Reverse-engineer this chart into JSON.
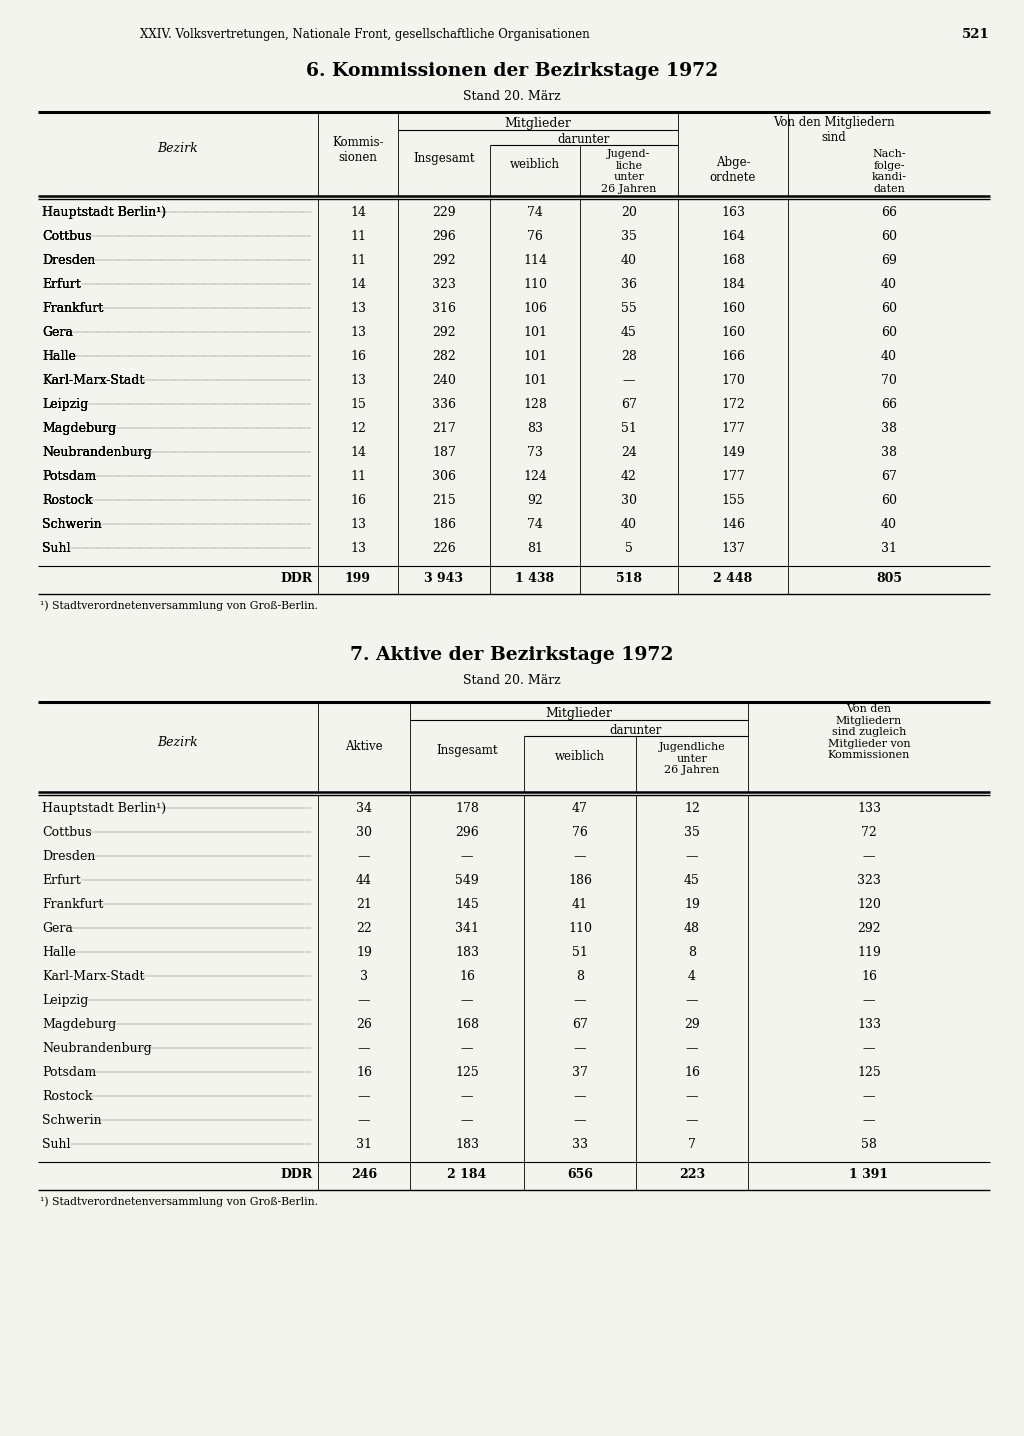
{
  "page_header": "XXIV. Volksvertretungen, Nationale Front, gesellschaftliche Organisationen",
  "page_number": "521",
  "table1_title": "6. Kommissionen der Bezirkstage 1972",
  "table1_subtitle": "Stand 20. März",
  "table2_title": "7. Aktive der Bezirkstage 1972",
  "table2_subtitle": "Stand 20. März",
  "footnote": "¹) Stadtverordnetenversammlung von Groß-Berlin.",
  "table1_data": [
    [
      "Hauptstadt Berlin¹)",
      "14",
      "229",
      "74",
      "20",
      "163",
      "66"
    ],
    [
      "Cottbus",
      "11",
      "296",
      "76",
      "35",
      "164",
      "60"
    ],
    [
      "Dresden",
      "11",
      "292",
      "114",
      "40",
      "168",
      "69"
    ],
    [
      "Erfurt",
      "14",
      "323",
      "110",
      "36",
      "184",
      "40"
    ],
    [
      "Frankfurt",
      "13",
      "316",
      "106",
      "55",
      "160",
      "60"
    ],
    [
      "Gera",
      "13",
      "292",
      "101",
      "45",
      "160",
      "60"
    ],
    [
      "Halle",
      "16",
      "282",
      "101",
      "28",
      "166",
      "40"
    ],
    [
      "Karl-Marx-Stadt",
      "13",
      "240",
      "101",
      "—",
      "170",
      "70"
    ],
    [
      "Leipzig",
      "15",
      "336",
      "128",
      "67",
      "172",
      "66"
    ],
    [
      "Magdeburg",
      "12",
      "217",
      "83",
      "51",
      "177",
      "38"
    ],
    [
      "Neubrandenburg",
      "14",
      "187",
      "73",
      "24",
      "149",
      "38"
    ],
    [
      "Potsdam",
      "11",
      "306",
      "124",
      "42",
      "177",
      "67"
    ],
    [
      "Rostock",
      "16",
      "215",
      "92",
      "30",
      "155",
      "60"
    ],
    [
      "Schwerin",
      "13",
      "186",
      "74",
      "40",
      "146",
      "40"
    ],
    [
      "Suhl",
      "13",
      "226",
      "81",
      "5",
      "137",
      "31"
    ]
  ],
  "table1_total": [
    "DDR",
    "199",
    "3 943",
    "1 438",
    "518",
    "2 448",
    "805"
  ],
  "table2_data": [
    [
      "Hauptstadt Berlin¹)",
      "34",
      "178",
      "47",
      "12",
      "133"
    ],
    [
      "Cottbus",
      "30",
      "296",
      "76",
      "35",
      "72"
    ],
    [
      "Dresden",
      "—",
      "—",
      "—",
      "—",
      "—"
    ],
    [
      "Erfurt",
      "44",
      "549",
      "186",
      "45",
      "323"
    ],
    [
      "Frankfurt",
      "21",
      "145",
      "41",
      "19",
      "120"
    ],
    [
      "Gera",
      "22",
      "341",
      "110",
      "48",
      "292"
    ],
    [
      "Halle",
      "19",
      "183",
      "51",
      "8",
      "119"
    ],
    [
      "Karl-Marx-Stadt",
      "3",
      "16",
      "8",
      "4",
      "16"
    ],
    [
      "Leipzig",
      "—",
      "—",
      "—",
      "—",
      "—"
    ],
    [
      "Magdeburg",
      "26",
      "168",
      "67",
      "29",
      "133"
    ],
    [
      "Neubrandenburg",
      "—",
      "—",
      "—",
      "—",
      "—"
    ],
    [
      "Potsdam",
      "16",
      "125",
      "37",
      "16",
      "125"
    ],
    [
      "Rostock",
      "—",
      "—",
      "—",
      "—",
      "—"
    ],
    [
      "Schwerin",
      "—",
      "—",
      "—",
      "—",
      "—"
    ],
    [
      "Suhl",
      "31",
      "183",
      "33",
      "7",
      "58"
    ]
  ],
  "table2_total": [
    "DDR",
    "246",
    "2 184",
    "656",
    "223",
    "1 391"
  ],
  "bg_color": "#f4f4ee"
}
